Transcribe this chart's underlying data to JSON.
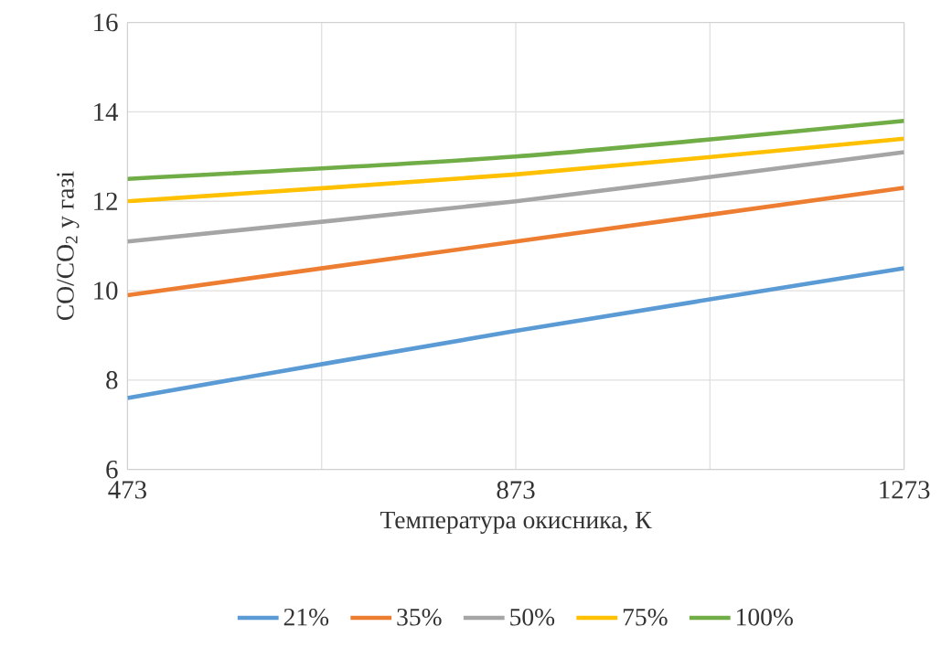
{
  "chart_data": {
    "type": "line",
    "xlabel": "Температура окисника, К",
    "ylabel": "CO/CO$_{2}$ у газі",
    "x": [
      473,
      873,
      1273
    ],
    "series": [
      {
        "name": "21%",
        "color": "#5b9bd5",
        "values": [
          7.6,
          9.1,
          10.5
        ]
      },
      {
        "name": "35%",
        "color": "#ed7d31",
        "values": [
          9.9,
          11.1,
          12.3
        ]
      },
      {
        "name": "50%",
        "color": "#a5a5a5",
        "values": [
          11.1,
          12.0,
          13.1
        ]
      },
      {
        "name": "75%",
        "color": "#ffc000",
        "values": [
          12.0,
          12.6,
          13.4
        ]
      },
      {
        "name": "100%",
        "color": "#70ad47",
        "values": [
          12.5,
          13.0,
          13.8
        ]
      }
    ],
    "xlim": [
      473,
      1273
    ],
    "xticks": [
      473,
      {
        "value": 673,
        "label": null
      },
      873,
      {
        "value": 1073,
        "label": null
      },
      1273
    ],
    "ylim": [
      6,
      16
    ],
    "yticks": [
      6,
      8,
      10,
      12,
      14,
      16
    ],
    "grid": true,
    "legend": "bottom",
    "marker": "none",
    "line_style": "solid"
  }
}
